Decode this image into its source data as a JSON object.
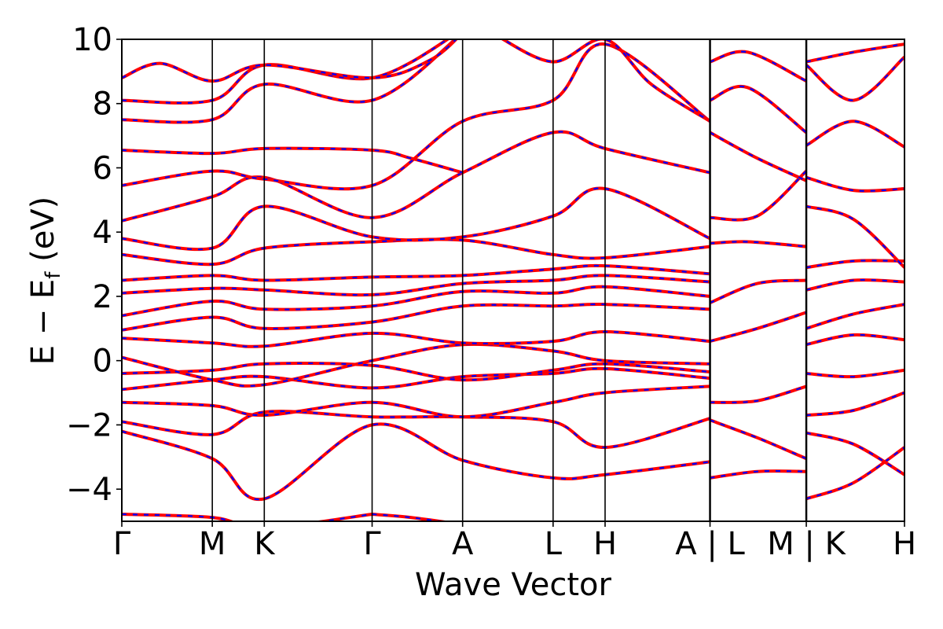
{
  "chart_data": {
    "type": "line",
    "title": "",
    "xlabel": "Wave Vector",
    "ylabel": "E − E",
    "ylabel_subscript": "f",
    "ylabel_unit": "(eV)",
    "ylim": [
      -5,
      10
    ],
    "yticks": [
      -4,
      -2,
      0,
      2,
      4,
      6,
      8,
      10
    ],
    "ytick_labels": [
      "−4",
      "−2",
      "0",
      "2",
      "4",
      "6",
      "8",
      "10"
    ],
    "xlim": [
      0,
      8.13
    ],
    "kpoint_positions": [
      0,
      0.94,
      1.48,
      2.6,
      3.54,
      4.48,
      5.02,
      6.11,
      7.11,
      8.13
    ],
    "kpoint_labels": [
      "Γ",
      "M",
      "K",
      "Γ",
      "A",
      "L",
      "H",
      "A | L",
      "M | K",
      "H"
    ],
    "segment_breaks": [
      6.11,
      7.11
    ],
    "grid": false,
    "legend": "none",
    "colors": {
      "band_primary": "#ff0000",
      "band_secondary": "#0000ff"
    },
    "series_style": "two overlapping spin channels: solid red with dashed blue on top",
    "series": [
      {
        "x": [
          0,
          0.94,
          1.48,
          2.6
        ],
        "y": [
          -4.78,
          -4.88,
          -5.2,
          -4.78
        ]
      },
      {
        "x": [
          2.6,
          3.0,
          3.54
        ],
        "y": [
          -4.78,
          -4.88,
          -5.1
        ]
      },
      {
        "x": [
          0,
          0.94,
          1.48,
          2.6,
          3.54,
          4.48,
          5.02,
          6.11
        ],
        "y": [
          -2.2,
          -3.05,
          -4.3,
          -2.0,
          -3.1,
          -3.65,
          -3.55,
          -3.15
        ]
      },
      {
        "x": [
          0,
          0.94,
          1.48,
          2.6,
          3.54,
          4.48,
          5.02,
          6.11
        ],
        "y": [
          -1.9,
          -2.3,
          -1.6,
          -1.75,
          -1.75,
          -1.9,
          -2.7,
          -1.8
        ]
      },
      {
        "x": [
          0,
          0.94,
          1.48,
          2.6,
          3.54,
          4.48,
          5.02,
          6.11
        ],
        "y": [
          -1.3,
          -1.4,
          -1.7,
          -1.3,
          -1.75,
          -1.3,
          -1.0,
          -0.8
        ]
      },
      {
        "x": [
          0,
          0.94,
          1.48,
          2.6,
          3.54,
          4.48,
          5.02,
          6.11
        ],
        "y": [
          -0.9,
          -0.6,
          -0.5,
          -0.85,
          -0.5,
          -0.4,
          -0.25,
          -0.55
        ]
      },
      {
        "x": [
          0,
          0.94,
          1.48,
          2.6,
          3.54,
          4.48,
          5.02,
          6.11
        ],
        "y": [
          -0.4,
          -0.3,
          -0.1,
          -0.15,
          -0.6,
          -0.3,
          -0.1,
          -0.35
        ]
      },
      {
        "x": [
          0,
          0.94,
          1.48,
          2.6,
          3.54,
          4.48,
          5.02,
          6.11
        ],
        "y": [
          0.1,
          -0.6,
          -0.75,
          0.0,
          0.5,
          0.3,
          0.0,
          -0.1
        ]
      },
      {
        "x": [
          0,
          0.94,
          1.48,
          2.6,
          3.54,
          4.48,
          5.02,
          6.11
        ],
        "y": [
          0.7,
          0.55,
          0.45,
          0.85,
          0.55,
          0.6,
          0.9,
          0.6
        ]
      },
      {
        "x": [
          0,
          0.94,
          1.48,
          2.6,
          3.54,
          4.48,
          5.02,
          6.11
        ],
        "y": [
          0.95,
          1.35,
          1.0,
          1.2,
          1.7,
          1.7,
          1.75,
          1.6
        ]
      },
      {
        "x": [
          0,
          0.94,
          1.48,
          2.6,
          3.54,
          4.48,
          5.02,
          6.11
        ],
        "y": [
          1.4,
          1.85,
          1.6,
          1.7,
          2.15,
          2.1,
          2.3,
          2.0
        ]
      },
      {
        "x": [
          0,
          0.94,
          1.48,
          2.6,
          3.54,
          4.48,
          5.02,
          6.11
        ],
        "y": [
          2.1,
          2.25,
          2.2,
          2.05,
          2.4,
          2.5,
          2.65,
          2.45
        ]
      },
      {
        "x": [
          0,
          0.94,
          1.48,
          2.6,
          3.54,
          4.48,
          5.02,
          6.11
        ],
        "y": [
          2.5,
          2.65,
          2.5,
          2.6,
          2.65,
          2.85,
          2.95,
          2.7
        ]
      },
      {
        "x": [
          0,
          0.94,
          1.48,
          2.6,
          3.54,
          4.48,
          5.02,
          6.11
        ],
        "y": [
          3.3,
          3.0,
          3.5,
          3.7,
          3.75,
          3.3,
          3.2,
          3.55
        ]
      },
      {
        "x": [
          0,
          0.94,
          1.48,
          2.6,
          3.54,
          4.48,
          5.02,
          6.11
        ],
        "y": [
          3.8,
          3.5,
          4.8,
          3.85,
          3.85,
          4.5,
          5.35,
          3.8
        ]
      },
      {
        "x": [
          0,
          0.94,
          1.48,
          2.6,
          3.54,
          4.48,
          5.02,
          6.11
        ],
        "y": [
          4.35,
          5.1,
          5.7,
          4.45,
          5.85,
          7.1,
          6.6,
          5.85
        ]
      },
      {
        "x": [
          0,
          0.94,
          1.48,
          2.6,
          3.54,
          4.48,
          5.02,
          6.11
        ],
        "y": [
          5.45,
          5.9,
          5.65,
          5.45,
          7.45,
          8.1,
          9.85,
          7.45
        ]
      },
      {
        "x": [
          0,
          0.94,
          1.48,
          2.6,
          3.0,
          3.54
        ],
        "y": [
          6.55,
          6.45,
          6.6,
          6.55,
          6.3,
          5.85
        ]
      },
      {
        "x": [
          0,
          0.94,
          1.48,
          2.6,
          3.54
        ],
        "y": [
          7.5,
          7.5,
          8.6,
          8.1,
          10.2
        ]
      },
      {
        "x": [
          0,
          0.94,
          1.48,
          2.6,
          3.54
        ],
        "y": [
          8.1,
          8.1,
          9.2,
          8.8,
          10.3
        ]
      },
      {
        "x": [
          0,
          0.4,
          0.94,
          1.48,
          2.6,
          3.2,
          3.54
        ],
        "y": [
          8.8,
          9.25,
          8.7,
          9.2,
          8.8,
          9.35,
          10.2
        ]
      },
      {
        "x": [
          3.9,
          4.48,
          5.02,
          5.5,
          6.11
        ],
        "y": [
          10.1,
          9.3,
          10.0,
          8.6,
          7.45
        ]
      },
      {
        "x": [
          6.11,
          6.5,
          7.11
        ],
        "y": [
          3.65,
          3.7,
          3.55
        ]
      },
      {
        "x": [
          6.11,
          6.6,
          7.11
        ],
        "y": [
          4.45,
          4.5,
          5.9
        ]
      },
      {
        "x": [
          6.11,
          6.6,
          7.11
        ],
        "y": [
          7.1,
          6.3,
          5.6
        ]
      },
      {
        "x": [
          6.11,
          6.5,
          7.11
        ],
        "y": [
          8.1,
          8.5,
          7.1
        ]
      },
      {
        "x": [
          6.11,
          6.5,
          7.11
        ],
        "y": [
          9.3,
          9.6,
          8.7
        ]
      },
      {
        "x": [
          6.11,
          6.6,
          7.11
        ],
        "y": [
          -3.65,
          -3.45,
          -3.45
        ]
      },
      {
        "x": [
          6.11,
          6.6,
          7.11
        ],
        "y": [
          -1.85,
          -2.4,
          -3.05
        ]
      },
      {
        "x": [
          6.11,
          6.6,
          7.11
        ],
        "y": [
          -1.3,
          -1.25,
          -0.8
        ]
      },
      {
        "x": [
          6.11,
          6.6,
          7.11
        ],
        "y": [
          0.6,
          1.0,
          1.5
        ]
      },
      {
        "x": [
          6.11,
          6.6,
          7.11
        ],
        "y": [
          1.8,
          2.4,
          2.5
        ]
      },
      {
        "x": [
          7.11,
          7.6,
          8.13
        ],
        "y": [
          -4.3,
          -3.8,
          -2.7
        ]
      },
      {
        "x": [
          7.11,
          7.6,
          8.13
        ],
        "y": [
          -2.25,
          -2.6,
          -3.55
        ]
      },
      {
        "x": [
          7.11,
          7.6,
          8.13
        ],
        "y": [
          -1.7,
          -1.55,
          -1.0
        ]
      },
      {
        "x": [
          7.11,
          7.6,
          8.13
        ],
        "y": [
          -0.4,
          -0.5,
          -0.3
        ]
      },
      {
        "x": [
          7.11,
          7.6,
          8.13
        ],
        "y": [
          0.5,
          0.8,
          0.65
        ]
      },
      {
        "x": [
          7.11,
          7.6,
          8.13
        ],
        "y": [
          1.0,
          1.45,
          1.75
        ]
      },
      {
        "x": [
          7.11,
          7.6,
          8.13
        ],
        "y": [
          2.2,
          2.5,
          2.45
        ]
      },
      {
        "x": [
          7.11,
          7.6,
          8.13
        ],
        "y": [
          2.9,
          3.1,
          3.1
        ]
      },
      {
        "x": [
          7.11,
          7.6,
          8.13
        ],
        "y": [
          4.8,
          4.4,
          2.9
        ]
      },
      {
        "x": [
          7.11,
          7.6,
          8.13
        ],
        "y": [
          5.7,
          5.3,
          5.35
        ]
      },
      {
        "x": [
          7.11,
          7.6,
          8.13
        ],
        "y": [
          6.7,
          7.45,
          6.65
        ]
      },
      {
        "x": [
          7.11,
          7.6,
          8.13
        ],
        "y": [
          9.2,
          8.1,
          9.45
        ]
      },
      {
        "x": [
          7.11,
          7.6,
          8.13
        ],
        "y": [
          9.3,
          9.6,
          9.85
        ]
      }
    ]
  }
}
